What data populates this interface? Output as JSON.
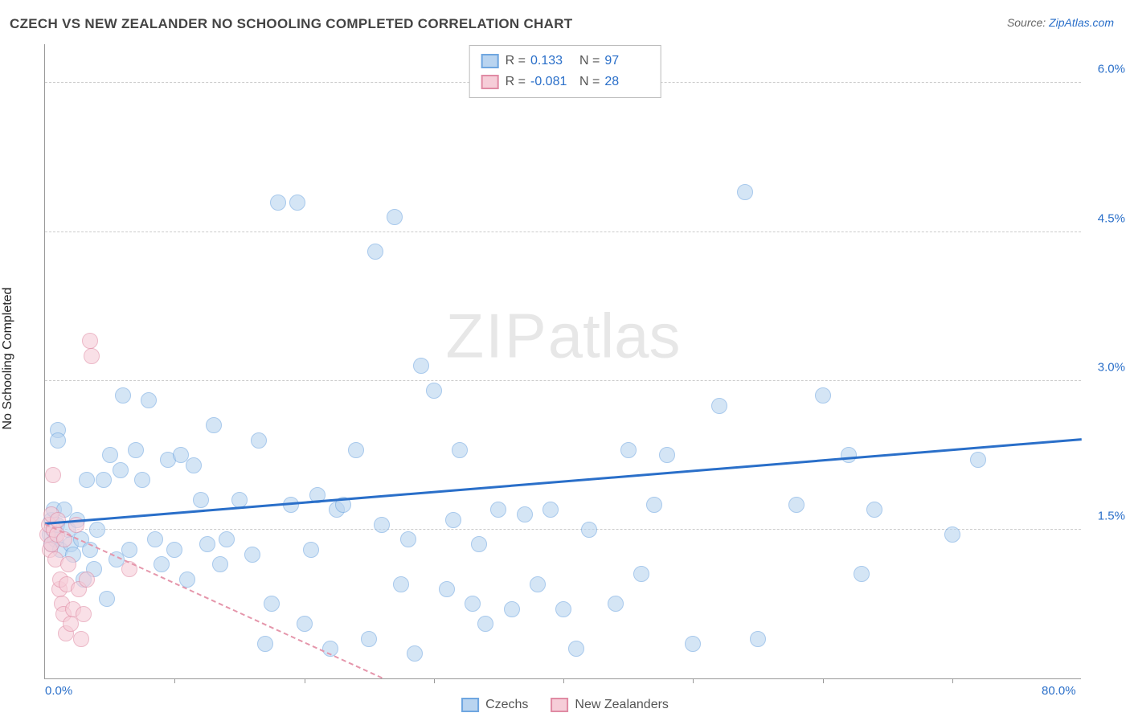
{
  "title": "CZECH VS NEW ZEALANDER NO SCHOOLING COMPLETED CORRELATION CHART",
  "source_prefix": "Source: ",
  "source_name": "ZipAtlas.com",
  "ylabel": "No Schooling Completed",
  "watermark_bold": "ZIP",
  "watermark_rest": "atlas",
  "chart": {
    "type": "scatter",
    "xrange": [
      0,
      80
    ],
    "yrange": [
      0,
      6.4
    ],
    "xticks_labels": [
      {
        "v": 0,
        "label": "0.0%"
      },
      {
        "v": 80,
        "label": "80.0%"
      }
    ],
    "xticks_minor": [
      10,
      20,
      30,
      40,
      50,
      60,
      70
    ],
    "yticks": [
      {
        "v": 1.5,
        "label": "1.5%"
      },
      {
        "v": 3.0,
        "label": "3.0%"
      },
      {
        "v": 4.5,
        "label": "4.5%"
      },
      {
        "v": 6.0,
        "label": "6.0%"
      }
    ],
    "grid_color": "#cccccc",
    "background_color": "#ffffff",
    "marker_radius": 10,
    "marker_border_width": 1.5,
    "series": [
      {
        "name": "Czechs",
        "fill": "#b9d4f0",
        "stroke": "#6fa6e0",
        "fill_opacity": 0.6,
        "R": "0.133",
        "N": "97",
        "trend": {
          "y_at_x0": 1.55,
          "y_at_xmax": 2.4,
          "color": "#2a6fc9",
          "width": 3,
          "dash": "solid"
        },
        "points": [
          [
            0.4,
            1.45
          ],
          [
            0.5,
            1.6
          ],
          [
            0.5,
            1.35
          ],
          [
            0.6,
            1.5
          ],
          [
            0.7,
            1.7
          ],
          [
            0.8,
            1.4
          ],
          [
            0.9,
            1.55
          ],
          [
            1.0,
            2.5
          ],
          [
            1.0,
            2.4
          ],
          [
            1.2,
            1.3
          ],
          [
            1.5,
            1.7
          ],
          [
            1.8,
            1.5
          ],
          [
            2.0,
            1.35
          ],
          [
            2.2,
            1.25
          ],
          [
            2.5,
            1.6
          ],
          [
            2.8,
            1.4
          ],
          [
            3.0,
            1.0
          ],
          [
            3.2,
            2.0
          ],
          [
            3.5,
            1.3
          ],
          [
            3.8,
            1.1
          ],
          [
            4.0,
            1.5
          ],
          [
            4.5,
            2.0
          ],
          [
            4.8,
            0.8
          ],
          [
            5.0,
            2.25
          ],
          [
            5.5,
            1.2
          ],
          [
            5.8,
            2.1
          ],
          [
            6.0,
            2.85
          ],
          [
            6.5,
            1.3
          ],
          [
            7.0,
            2.3
          ],
          [
            7.5,
            2.0
          ],
          [
            8.0,
            2.8
          ],
          [
            8.5,
            1.4
          ],
          [
            9.0,
            1.15
          ],
          [
            9.5,
            2.2
          ],
          [
            10.0,
            1.3
          ],
          [
            10.5,
            2.25
          ],
          [
            11.0,
            1.0
          ],
          [
            11.5,
            2.15
          ],
          [
            12.0,
            1.8
          ],
          [
            12.5,
            1.35
          ],
          [
            13.0,
            2.55
          ],
          [
            13.5,
            1.15
          ],
          [
            14.0,
            1.4
          ],
          [
            15.0,
            1.8
          ],
          [
            16.0,
            1.25
          ],
          [
            16.5,
            2.4
          ],
          [
            17.0,
            0.35
          ],
          [
            17.5,
            0.75
          ],
          [
            18.0,
            4.8
          ],
          [
            19.0,
            1.75
          ],
          [
            19.5,
            4.8
          ],
          [
            20.0,
            0.55
          ],
          [
            20.5,
            1.3
          ],
          [
            21.0,
            1.85
          ],
          [
            22.0,
            0.3
          ],
          [
            22.5,
            1.7
          ],
          [
            23.0,
            1.75
          ],
          [
            24.0,
            2.3
          ],
          [
            25.0,
            0.4
          ],
          [
            25.5,
            4.3
          ],
          [
            26.0,
            1.55
          ],
          [
            27.0,
            4.65
          ],
          [
            27.5,
            0.95
          ],
          [
            28.0,
            1.4
          ],
          [
            28.5,
            0.25
          ],
          [
            29.0,
            3.15
          ],
          [
            30.0,
            2.9
          ],
          [
            31.0,
            0.9
          ],
          [
            31.5,
            1.6
          ],
          [
            32.0,
            2.3
          ],
          [
            33.0,
            0.75
          ],
          [
            33.5,
            1.35
          ],
          [
            34.0,
            0.55
          ],
          [
            35.0,
            1.7
          ],
          [
            36.0,
            0.7
          ],
          [
            37.0,
            1.65
          ],
          [
            38.0,
            0.95
          ],
          [
            39.0,
            1.7
          ],
          [
            40.0,
            0.7
          ],
          [
            41.0,
            0.3
          ],
          [
            42.0,
            1.5
          ],
          [
            44.0,
            0.75
          ],
          [
            45.0,
            2.3
          ],
          [
            46.0,
            1.05
          ],
          [
            47.0,
            1.75
          ],
          [
            48.0,
            2.25
          ],
          [
            50.0,
            0.35
          ],
          [
            52.0,
            2.75
          ],
          [
            54.0,
            4.9
          ],
          [
            55.0,
            0.4
          ],
          [
            58.0,
            1.75
          ],
          [
            60.0,
            2.85
          ],
          [
            62.0,
            2.25
          ],
          [
            64.0,
            1.7
          ],
          [
            63.0,
            1.05
          ],
          [
            70.0,
            1.45
          ],
          [
            72.0,
            2.2
          ]
        ]
      },
      {
        "name": "New Zealanders",
        "fill": "#f6cdd8",
        "stroke": "#e08ba4",
        "fill_opacity": 0.6,
        "R": "-0.081",
        "N": "28",
        "trend": {
          "y_at_x0": 1.55,
          "y_at_xmax": 0.0,
          "x_zero": 26,
          "color": "#e596ab",
          "width": 2,
          "dash": "dashed"
        },
        "points": [
          [
            0.2,
            1.45
          ],
          [
            0.3,
            1.55
          ],
          [
            0.4,
            1.3
          ],
          [
            0.5,
            1.65
          ],
          [
            0.5,
            1.35
          ],
          [
            0.6,
            2.05
          ],
          [
            0.7,
            1.5
          ],
          [
            0.8,
            1.2
          ],
          [
            0.9,
            1.45
          ],
          [
            1.0,
            1.6
          ],
          [
            1.1,
            0.9
          ],
          [
            1.2,
            1.0
          ],
          [
            1.3,
            0.75
          ],
          [
            1.4,
            0.65
          ],
          [
            1.5,
            1.4
          ],
          [
            1.6,
            0.45
          ],
          [
            1.7,
            0.95
          ],
          [
            1.8,
            1.15
          ],
          [
            2.0,
            0.55
          ],
          [
            2.2,
            0.7
          ],
          [
            2.4,
            1.55
          ],
          [
            2.6,
            0.9
          ],
          [
            2.8,
            0.4
          ],
          [
            3.0,
            0.65
          ],
          [
            3.2,
            1.0
          ],
          [
            3.5,
            3.4
          ],
          [
            3.6,
            3.25
          ],
          [
            6.5,
            1.1
          ]
        ]
      }
    ],
    "legend_bottom": [
      {
        "label": "Czechs",
        "fill": "#b9d4f0",
        "stroke": "#6fa6e0"
      },
      {
        "label": "New Zealanders",
        "fill": "#f6cdd8",
        "stroke": "#e08ba4"
      }
    ]
  }
}
